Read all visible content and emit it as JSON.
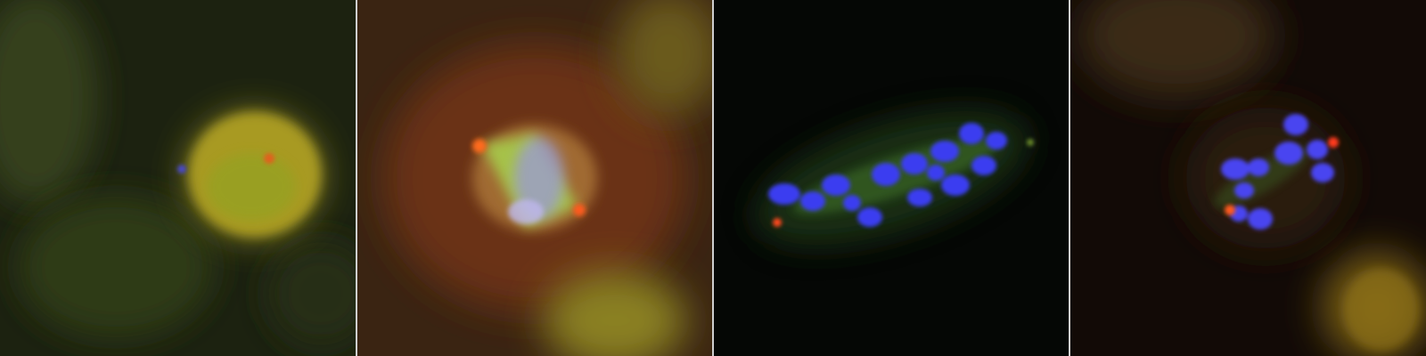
{
  "panels": [
    {
      "id": "panel-1",
      "stage": "interphase-cell",
      "dominant_channels": [
        "green",
        "red"
      ],
      "background": "#1e2410"
    },
    {
      "id": "panel-2",
      "stage": "spindle-cell",
      "dominant_channels": [
        "green",
        "red",
        "blue"
      ],
      "background": "#3a2212"
    },
    {
      "id": "panel-3",
      "stage": "aligned-chromosomes",
      "dominant_channels": [
        "blue",
        "green"
      ],
      "background": "#050705"
    },
    {
      "id": "panel-4",
      "stage": "chromosome-cluster",
      "dominant_channels": [
        "blue",
        "red"
      ],
      "background": "#120a06"
    }
  ],
  "colors": {
    "dna_blue": "#3b3df0",
    "tubulin_green": "#8fd23a",
    "centromere_red": "#ff4a1c",
    "cytoplasm_yellow": "#b8a820"
  }
}
